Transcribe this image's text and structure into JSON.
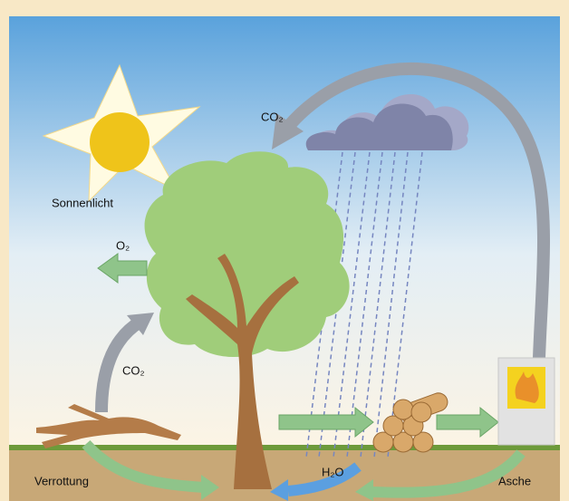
{
  "labels": {
    "co2_top": "CO₂",
    "sun": "Sonnenlicht",
    "o2": "O₂",
    "co2_left": "CO₂",
    "rot": "Verrottung",
    "h2o": "H₂O",
    "ash": "Asche"
  }
}
